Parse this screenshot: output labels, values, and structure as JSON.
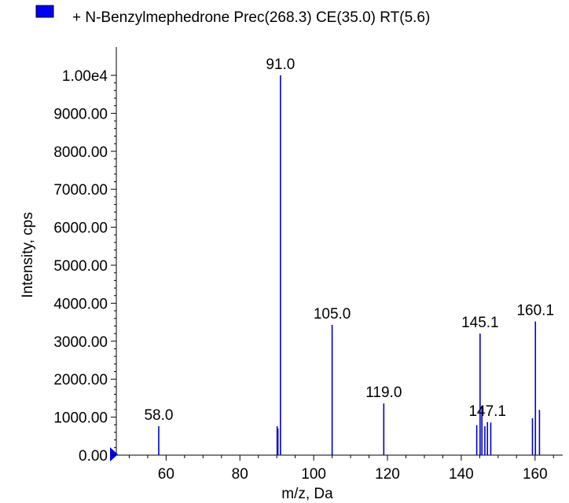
{
  "chart_data": {
    "type": "bar",
    "legend": {
      "label": "+ N-Benzylmephedrone Prec(268.3) CE(35.0) RT(5.6)",
      "color": "#0000ff",
      "placement": "top-left"
    },
    "xlabel": "m/z, Da",
    "ylabel": "Intensity, cps",
    "xlim": [
      46.5,
      167.5
    ],
    "ylim": [
      0,
      10250
    ],
    "x_ticks": [
      {
        "value": 60,
        "label": "60"
      },
      {
        "value": 80,
        "label": "80"
      },
      {
        "value": 100,
        "label": "100"
      },
      {
        "value": 120,
        "label": "120"
      },
      {
        "value": 140,
        "label": "140"
      },
      {
        "value": 160,
        "label": "160"
      }
    ],
    "y_ticks": [
      {
        "value": 0,
        "label": "0.00"
      },
      {
        "value": 1000,
        "label": "1000.00"
      },
      {
        "value": 2000,
        "label": "2000.00"
      },
      {
        "value": 3000,
        "label": "3000.00"
      },
      {
        "value": 4000,
        "label": "4000.00"
      },
      {
        "value": 5000,
        "label": "5000.00"
      },
      {
        "value": 6000,
        "label": "6000.00"
      },
      {
        "value": 7000,
        "label": "7000.00"
      },
      {
        "value": 8000,
        "label": "8000.00"
      },
      {
        "value": 9000,
        "label": "9000.00"
      },
      {
        "value": 10000,
        "label": "1.00e4"
      }
    ],
    "bar_color": "#0000cc",
    "peaks": [
      {
        "mz": 58.0,
        "intensity": 760,
        "label": "58.0"
      },
      {
        "mz": 90.1,
        "intensity": 760,
        "label": ""
      },
      {
        "mz": 90.3,
        "intensity": 700,
        "label": ""
      },
      {
        "mz": 91.0,
        "intensity": 10000,
        "label": "91.0"
      },
      {
        "mz": 105.0,
        "intensity": 3430,
        "label": "105.0"
      },
      {
        "mz": 119.0,
        "intensity": 1360,
        "label": "119.0"
      },
      {
        "mz": 144.2,
        "intensity": 790,
        "label": ""
      },
      {
        "mz": 145.1,
        "intensity": 3200,
        "label": "145.1"
      },
      {
        "mz": 145.6,
        "intensity": 1300,
        "label": ""
      },
      {
        "mz": 146.4,
        "intensity": 760,
        "label": ""
      },
      {
        "mz": 147.1,
        "intensity": 870,
        "label": "147.1"
      },
      {
        "mz": 148.0,
        "intensity": 860,
        "label": ""
      },
      {
        "mz": 159.3,
        "intensity": 970,
        "label": ""
      },
      {
        "mz": 160.1,
        "intensity": 3520,
        "label": "160.1"
      },
      {
        "mz": 161.2,
        "intensity": 1190,
        "label": ""
      }
    ]
  }
}
